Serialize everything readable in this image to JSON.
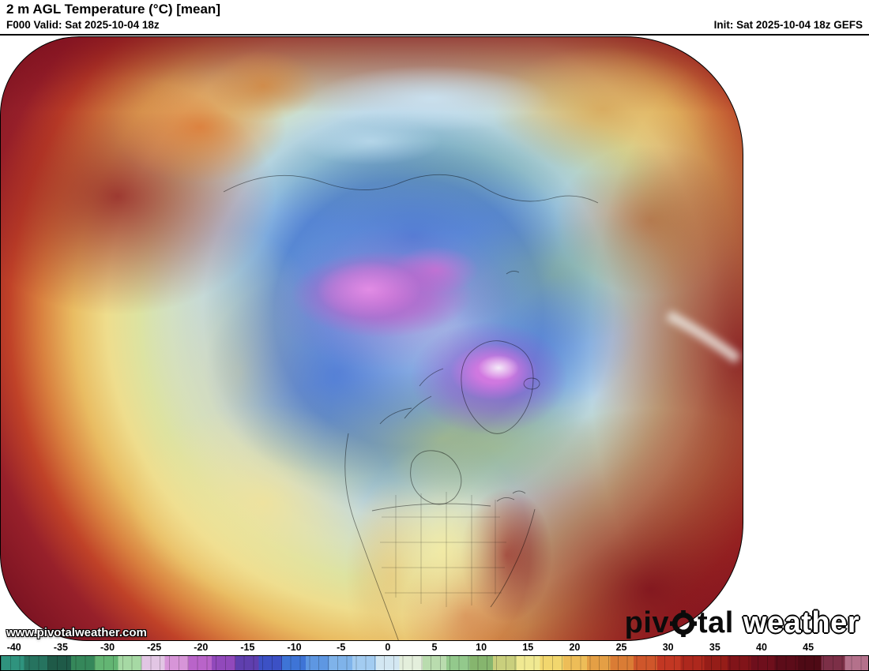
{
  "header": {
    "title": "2 m AGL Temperature (°C) [mean]",
    "valid": "F000 Valid: Sat 2025-10-04 18z",
    "init": "Init: Sat 2025-10-04 18z GEFS"
  },
  "watermark": "www.pivotalweather.com",
  "logo": {
    "part1": "piv",
    "part2": "tal",
    "part3": "weather"
  },
  "colorbar": {
    "vmin": -41.5,
    "vmax": 51.5,
    "step": 2.5,
    "ticks": [
      -40,
      -35,
      -30,
      -25,
      -20,
      -15,
      -10,
      -5,
      0,
      5,
      10,
      15,
      20,
      25,
      30,
      35,
      40,
      45
    ],
    "segments": [
      "#2f937e",
      "#26735f",
      "#1f5a48",
      "#35875a",
      "#63b573",
      "#a6d9a4",
      "#e2c6e4",
      "#d795d8",
      "#b964c9",
      "#9149bb",
      "#5f3fae",
      "#3c51c5",
      "#3e74d6",
      "#5e97e2",
      "#7fb3ea",
      "#a3ccf1",
      "#d3e7f2",
      "#e4efdc",
      "#b9dcae",
      "#93c98c",
      "#86b56e",
      "#c9cf7d",
      "#f0e992",
      "#f2d76e",
      "#edbd58",
      "#e49f45",
      "#da7c35",
      "#cf562b",
      "#c23723",
      "#ad281d",
      "#951d18",
      "#811419",
      "#6e0f1c",
      "#5c0c19",
      "#4e0a15",
      "#7c2f47",
      "#b4718b"
    ]
  },
  "map_legend": {
    "cold_extreme_color": "#d795d8",
    "cold_color": "#3e74d6",
    "neutral_color": "#d3e7f2",
    "warm_color": "#e49f45",
    "hot_color": "#811419"
  }
}
